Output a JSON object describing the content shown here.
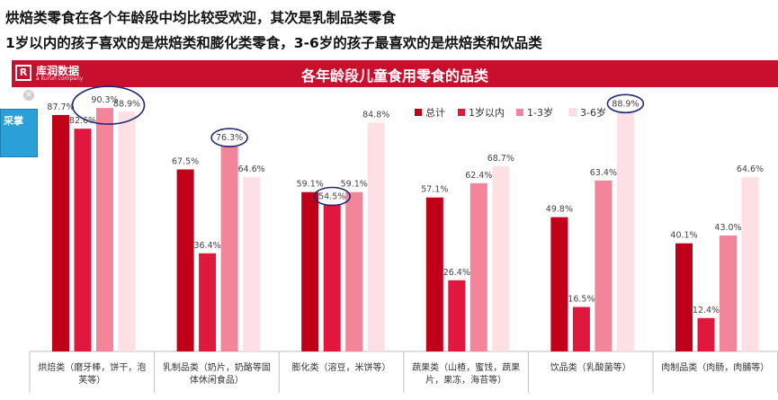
{
  "headlines": [
    "烘焙类零食在各个年龄段中均比较受欢迎，其次是乳制品类零食",
    "1岁以内的孩子喜欢的是烘焙类和膨化类零食，3-6岁的孩子最喜欢的是烘焙类和饮品类"
  ],
  "brand": {
    "name": "库润数据",
    "sub": "a kurun company",
    "mark": "R"
  },
  "ad": {
    "text": "采掌",
    "sub": ""
  },
  "colors": {
    "total": "#c00018",
    "under1": "#e0183e",
    "age1_3": "#f2859a",
    "age3_6": "#fde0e5",
    "accent": "#c8102e",
    "circle": "#1f2a70"
  },
  "chart_data": {
    "type": "bar",
    "title": "各年龄段儿童食用零食的品类",
    "categories": [
      [
        "烘焙类（磨牙棒，饼干，泡",
        "芙等）"
      ],
      [
        "乳制品类（奶片，奶酪等固",
        "体休闲食品）"
      ],
      [
        "膨化类（溶豆，米饼等）"
      ],
      [
        "蔬果类（山楂，蜜饯，蔬果",
        "片，果冻，海苔等）"
      ],
      [
        "饮品类（乳酸菌等）"
      ],
      [
        "肉制品类（肉肠，肉脯等）"
      ]
    ],
    "series": [
      {
        "name": "总计",
        "values": [
          87.7,
          67.5,
          59.1,
          57.1,
          49.8,
          40.1
        ],
        "labels": [
          "87.7%",
          "67.5%",
          "59.1%",
          "57.1%",
          "49.8%",
          "40.1%"
        ]
      },
      {
        "name": "1岁以内",
        "values": [
          82.6,
          36.4,
          54.5,
          26.4,
          16.5,
          12.4
        ],
        "labels": [
          "82.6%",
          "36.4%",
          "54.5%",
          "26.4%",
          "16.5%",
          "12.4%"
        ]
      },
      {
        "name": "1-3岁",
        "values": [
          90.3,
          76.3,
          59.1,
          62.4,
          63.4,
          43.0
        ],
        "labels": [
          "90.3%",
          "76.3%",
          "59.1%",
          "62.4%",
          "63.4%",
          "43.0%"
        ]
      },
      {
        "name": "3-6岁",
        "values": [
          88.9,
          64.6,
          84.8,
          68.7,
          88.9,
          64.6
        ],
        "labels": [
          "88.9%",
          "64.6%",
          "84.8%",
          "68.7%",
          "88.9%",
          "64.6%"
        ]
      }
    ],
    "ylim": [
      0,
      100
    ],
    "grid": false,
    "legend_position": "top-right",
    "highlighted": [
      {
        "category_index": 0,
        "series_index": 2
      },
      {
        "category_index": 1,
        "series_index": 2
      },
      {
        "category_index": 2,
        "series_index": 1
      },
      {
        "category_index": 4,
        "series_index": 3
      }
    ]
  }
}
